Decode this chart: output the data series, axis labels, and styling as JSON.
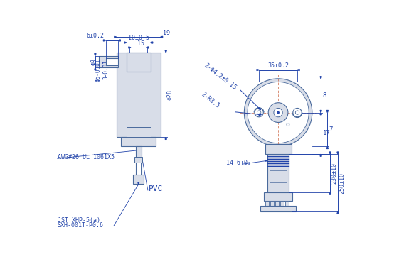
{
  "bg_color": "#ffffff",
  "line_color": "#4a6a9c",
  "dim_color": "#2244aa",
  "fig_width": 5.61,
  "fig_height": 3.72,
  "annotations": {
    "dim_10": "10±0.5",
    "dim_6": "6±0.2",
    "dim_19": "19",
    "dim_15": "15",
    "dim_phi9": "Φ9",
    "dim_phi28": "Φ28",
    "dim_phi5": "Φ5-0.01",
    "dim_3": "3-0.01",
    "dim_holes": "2-Φ4.2±0.15",
    "dim_radius": "2-R3.5",
    "dim_35": "35±0.2",
    "dim_8": "8",
    "dim_7": "7",
    "dim_17": "17",
    "dim_146": "14.6+0₂",
    "dim_230": "230±10",
    "dim_250": "250±10",
    "awg": "AWG#26 UL 1061X5",
    "pvc": "PVC",
    "jst1": "JST XHP-5(a)",
    "jst2": "SXH-001T-P0.6"
  }
}
